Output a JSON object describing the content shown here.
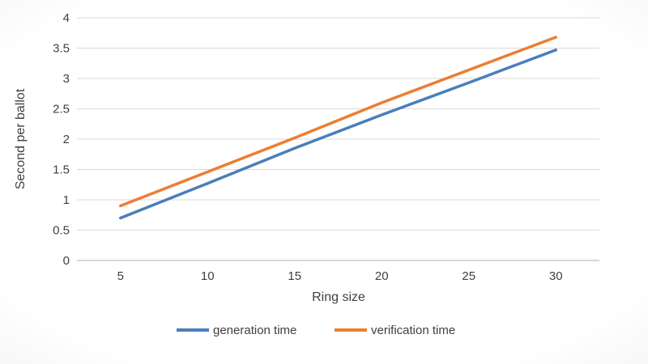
{
  "chart_data": {
    "type": "line",
    "title": "",
    "xlabel": "Ring size",
    "ylabel": "Second per ballot",
    "x": [
      5,
      10,
      15,
      20,
      25,
      30
    ],
    "ylim": [
      0,
      4
    ],
    "ytick_step": 0.5,
    "grid": true,
    "legend_position": "bottom",
    "series": [
      {
        "name": "generation time",
        "color": "#4A7EBB",
        "values": [
          0.7,
          1.27,
          1.85,
          2.4,
          2.93,
          3.47
        ]
      },
      {
        "name": "verification time",
        "color": "#ED7D31",
        "values": [
          0.9,
          1.46,
          2.02,
          2.6,
          3.14,
          3.68
        ]
      }
    ]
  },
  "colors": {
    "gridline": "#d9d9d9",
    "axis_line": "#bfbfbf",
    "text": "#404040"
  }
}
